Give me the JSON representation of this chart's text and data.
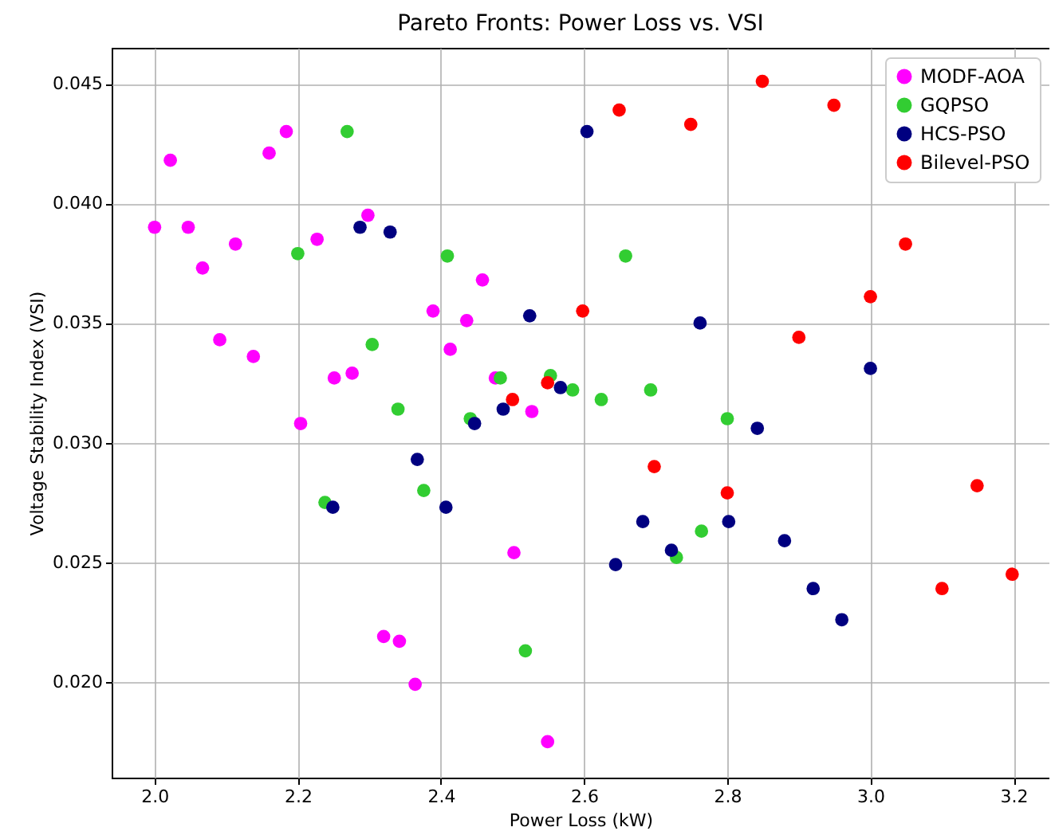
{
  "chart_data": {
    "type": "scatter",
    "title": "Pareto Fronts: Power Loss vs. VSI",
    "xlabel": "Power Loss (kW)",
    "ylabel": "Voltage Stability Index (VSI)",
    "xlim": [
      1.94,
      3.25
    ],
    "ylim": [
      0.016,
      0.0465
    ],
    "xticks": [
      {
        "value": 2,
        "label": "2.0"
      },
      {
        "value": 2.2,
        "label": "2.2"
      },
      {
        "value": 2.4,
        "label": "2.4"
      },
      {
        "value": 2.6,
        "label": "2.6"
      },
      {
        "value": 2.8,
        "label": "2.8"
      },
      {
        "value": 3,
        "label": "3.0"
      },
      {
        "value": 3.2,
        "label": "3.2"
      }
    ],
    "yticks": [
      {
        "value": 0.02,
        "label": "0.020"
      },
      {
        "value": 0.025,
        "label": "0.025"
      },
      {
        "value": 0.03,
        "label": "0.030"
      },
      {
        "value": 0.035,
        "label": "0.035"
      },
      {
        "value": 0.04,
        "label": "0.040"
      },
      {
        "value": 0.045,
        "label": "0.045"
      }
    ],
    "grid": true,
    "legend": "top right",
    "marker": "circle",
    "series": [
      {
        "name": "MODF-AOA",
        "color": "#ff00ff",
        "x": [
          2.0,
          2.022,
          2.047,
          2.067,
          2.091,
          2.113,
          2.138,
          2.16,
          2.184,
          2.204,
          2.227,
          2.251,
          2.276,
          2.298,
          2.389,
          2.413,
          2.436,
          2.458,
          2.476,
          2.527,
          2.502,
          2.32,
          2.342,
          2.364,
          2.549
        ],
        "values": [
          0.039,
          0.0418,
          0.039,
          0.0373,
          0.0343,
          0.0383,
          0.0336,
          0.0421,
          0.043,
          0.0308,
          0.0385,
          0.0327,
          0.0329,
          0.0395,
          0.0355,
          0.0339,
          0.0351,
          0.0368,
          0.0327,
          0.0313,
          0.0254,
          0.0219,
          0.0217,
          0.0199,
          0.0175
        ]
      },
      {
        "name": "GQPSO",
        "color": "#32cd32",
        "x": [
          2.269,
          2.2,
          2.409,
          2.304,
          2.34,
          2.238,
          2.376,
          2.441,
          2.483,
          2.553,
          2.584,
          2.624,
          2.658,
          2.693,
          2.729,
          2.764,
          2.8,
          2.518
        ],
        "values": [
          0.043,
          0.0379,
          0.0378,
          0.0341,
          0.0314,
          0.0275,
          0.028,
          0.031,
          0.0327,
          0.0328,
          0.0322,
          0.0318,
          0.0378,
          0.0322,
          0.0252,
          0.0263,
          0.031,
          0.0213
        ]
      },
      {
        "name": "HCS-PSO",
        "color": "#000080",
        "x": [
          2.287,
          2.329,
          2.524,
          2.567,
          2.604,
          2.762,
          3.0,
          2.487,
          2.447,
          2.367,
          2.249,
          2.407,
          2.842,
          2.682,
          2.644,
          2.722,
          2.802,
          2.88,
          2.92,
          2.96
        ],
        "values": [
          0.039,
          0.0388,
          0.0353,
          0.0323,
          0.043,
          0.035,
          0.0331,
          0.0314,
          0.0308,
          0.0293,
          0.0273,
          0.0273,
          0.0306,
          0.0267,
          0.0249,
          0.0255,
          0.0267,
          0.0259,
          0.0239,
          0.0226
        ]
      },
      {
        "name": "Bilevel-PSO",
        "color": "#ff0000",
        "x": [
          2.598,
          2.549,
          2.5,
          2.649,
          2.749,
          2.849,
          2.949,
          3.049,
          3.0,
          2.9,
          2.698,
          2.8,
          3.149,
          3.1,
          3.198
        ],
        "values": [
          0.0355,
          0.0325,
          0.0318,
          0.0439,
          0.0433,
          0.0451,
          0.0441,
          0.0383,
          0.0361,
          0.0344,
          0.029,
          0.0279,
          0.0282,
          0.0239,
          0.0245
        ]
      }
    ]
  }
}
